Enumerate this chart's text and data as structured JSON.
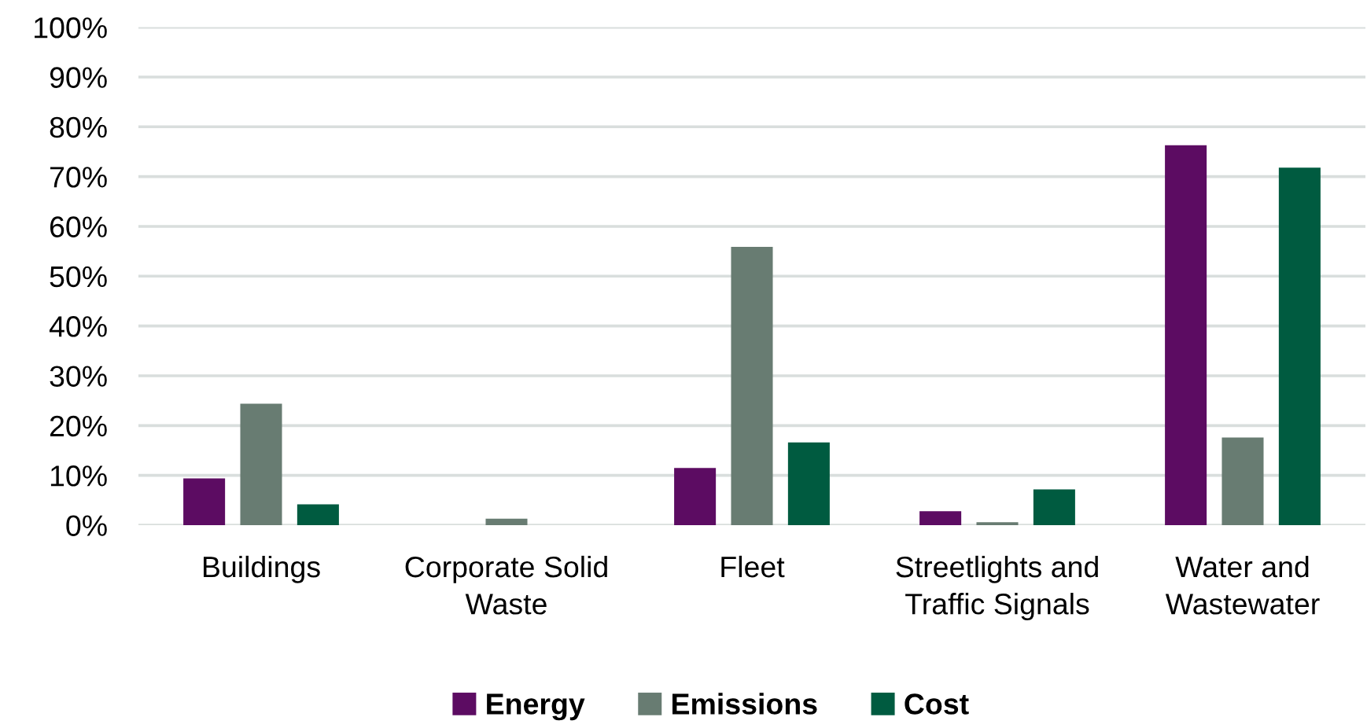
{
  "chart_data": {
    "type": "bar",
    "categories": [
      "Buildings",
      "Corporate Solid\nWaste",
      "Fleet",
      "Streetlights and\nTraffic Signals",
      "Water and\nWastewater"
    ],
    "series": [
      {
        "name": "Energy",
        "color": "#5c0c62",
        "values": [
          9.4,
          0,
          11.5,
          2.8,
          76.3
        ]
      },
      {
        "name": "Emissions",
        "color": "#687c72",
        "values": [
          24.4,
          1.3,
          55.9,
          0.6,
          17.6
        ]
      },
      {
        "name": "Cost",
        "color": "#005b40",
        "values": [
          4.2,
          0,
          16.6,
          7.2,
          71.8
        ]
      }
    ],
    "ylim": [
      0,
      100
    ],
    "yticks": [
      {
        "value": 0,
        "label": "0%"
      },
      {
        "value": 10,
        "label": "10%"
      },
      {
        "value": 20,
        "label": "20%"
      },
      {
        "value": 30,
        "label": "30%"
      },
      {
        "value": 40,
        "label": "40%"
      },
      {
        "value": 50,
        "label": "50%"
      },
      {
        "value": 60,
        "label": "60%"
      },
      {
        "value": 70,
        "label": "70%"
      },
      {
        "value": 80,
        "label": "80%"
      },
      {
        "value": 90,
        "label": "90%"
      },
      {
        "value": 100,
        "label": "100%"
      }
    ],
    "grid": "y",
    "legend": "bottom"
  }
}
